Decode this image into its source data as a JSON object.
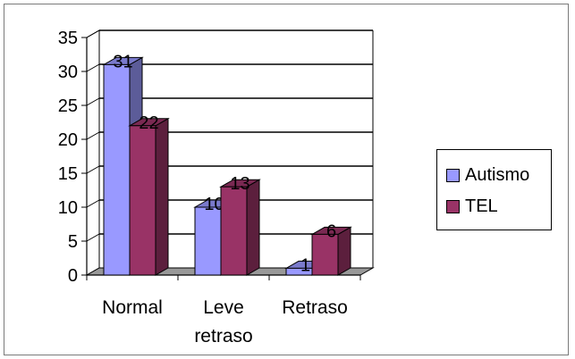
{
  "chart_data": {
    "type": "bar",
    "categories": [
      "Normal",
      "Leve retraso",
      "Retraso"
    ],
    "category_lines": [
      [
        "Normal"
      ],
      [
        "Leve",
        "retraso"
      ],
      [
        "Retraso"
      ]
    ],
    "series": [
      {
        "name": "Autismo",
        "values": [
          31,
          10,
          1
        ],
        "color": "#9999ff"
      },
      {
        "name": "TEL",
        "values": [
          22,
          13,
          6
        ],
        "color": "#993366"
      }
    ],
    "ylim": [
      0,
      35
    ],
    "yticks": [
      0,
      5,
      10,
      15,
      20,
      25,
      30,
      35
    ],
    "grid": true,
    "legend": "right",
    "three_d": true
  }
}
